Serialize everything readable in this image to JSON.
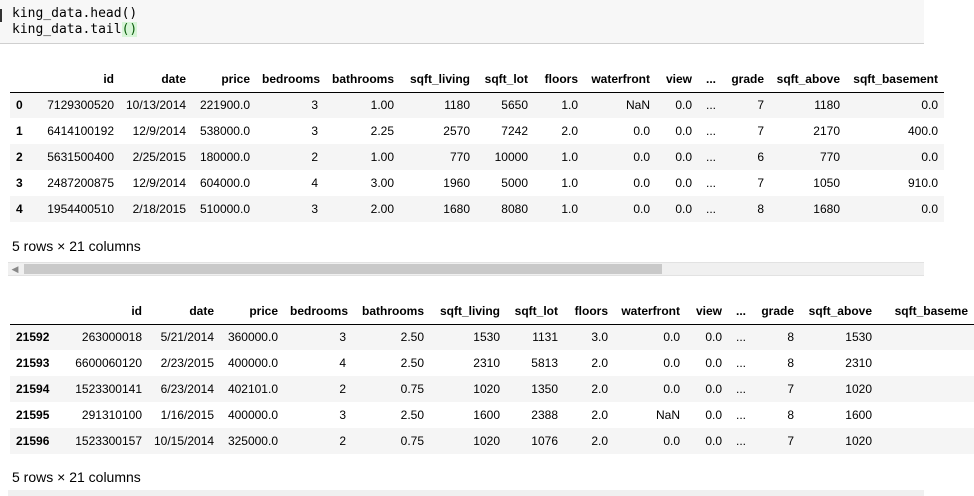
{
  "code": {
    "line1": "king_data.head()",
    "line2_prefix": "king_data.tail",
    "line2_open": "(",
    "line2_close": ")"
  },
  "head_table": {
    "columns": [
      "",
      "id",
      "date",
      "price",
      "bedrooms",
      "bathrooms",
      "sqft_living",
      "sqft_lot",
      "floors",
      "waterfront",
      "view",
      "...",
      "grade",
      "sqft_above",
      "sqft_basement"
    ],
    "rows": [
      [
        "0",
        "7129300520",
        "10/13/2014",
        "221900.0",
        "3",
        "1.00",
        "1180",
        "5650",
        "1.0",
        "NaN",
        "0.0",
        "...",
        "7",
        "1180",
        "0.0"
      ],
      [
        "1",
        "6414100192",
        "12/9/2014",
        "538000.0",
        "3",
        "2.25",
        "2570",
        "7242",
        "2.0",
        "0.0",
        "0.0",
        "...",
        "7",
        "2170",
        "400.0"
      ],
      [
        "2",
        "5631500400",
        "2/25/2015",
        "180000.0",
        "2",
        "1.00",
        "770",
        "10000",
        "1.0",
        "0.0",
        "0.0",
        "...",
        "6",
        "770",
        "0.0"
      ],
      [
        "3",
        "2487200875",
        "12/9/2014",
        "604000.0",
        "4",
        "3.00",
        "1960",
        "5000",
        "1.0",
        "0.0",
        "0.0",
        "...",
        "7",
        "1050",
        "910.0"
      ],
      [
        "4",
        "1954400510",
        "2/18/2015",
        "510000.0",
        "3",
        "2.00",
        "1680",
        "8080",
        "1.0",
        "0.0",
        "0.0",
        "...",
        "8",
        "1680",
        "0.0"
      ]
    ],
    "footer": "5 rows × 21 columns"
  },
  "tail_table": {
    "columns": [
      "",
      "id",
      "date",
      "price",
      "bedrooms",
      "bathrooms",
      "sqft_living",
      "sqft_lot",
      "floors",
      "waterfront",
      "view",
      "...",
      "grade",
      "sqft_above",
      "sqft_baseme"
    ],
    "rows": [
      [
        "21592",
        "263000018",
        "5/21/2014",
        "360000.0",
        "3",
        "2.50",
        "1530",
        "1131",
        "3.0",
        "0.0",
        "0.0",
        "...",
        "8",
        "1530",
        ""
      ],
      [
        "21593",
        "6600060120",
        "2/23/2015",
        "400000.0",
        "4",
        "2.50",
        "2310",
        "5813",
        "2.0",
        "0.0",
        "0.0",
        "...",
        "8",
        "2310",
        ""
      ],
      [
        "21594",
        "1523300141",
        "6/23/2014",
        "402101.0",
        "2",
        "0.75",
        "1020",
        "1350",
        "2.0",
        "0.0",
        "0.0",
        "...",
        "7",
        "1020",
        ""
      ],
      [
        "21595",
        "291310100",
        "1/16/2015",
        "400000.0",
        "3",
        "2.50",
        "1600",
        "2388",
        "2.0",
        "NaN",
        "0.0",
        "...",
        "8",
        "1600",
        ""
      ],
      [
        "21596",
        "1523300157",
        "10/15/2014",
        "325000.0",
        "2",
        "0.75",
        "1020",
        "1076",
        "2.0",
        "0.0",
        "0.0",
        "...",
        "7",
        "1020",
        ""
      ]
    ],
    "footer": "5 rows × 21 columns"
  },
  "scrollbar": {
    "left_arrow_icon": "triangle-left-icon",
    "thumb_fraction": 0.71
  }
}
